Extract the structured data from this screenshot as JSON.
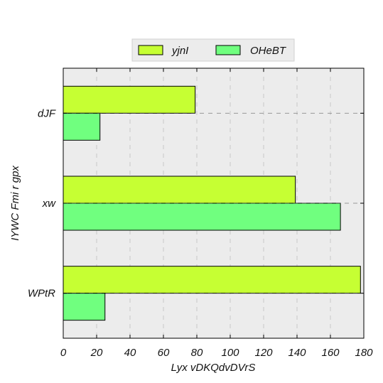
{
  "chart_data": {
    "type": "bar",
    "orientation": "horizontal",
    "title": "",
    "xlabel": "Lyx vDKQdvDVrS",
    "ylabel": "IYWC Fmi r gpx",
    "categories": [
      "dJF",
      "xw",
      "WPtR"
    ],
    "series": [
      {
        "name": "yjnI",
        "values": [
          79,
          139,
          178
        ]
      },
      {
        "name": "OHeBT",
        "values": [
          22,
          166,
          25
        ]
      }
    ],
    "xlim": [
      0,
      180
    ],
    "xticks": [
      0,
      20,
      40,
      60,
      80,
      100,
      120,
      140,
      160,
      180
    ],
    "grid": true,
    "legend_position": "top-center"
  },
  "colors": {
    "yjnI": "#c6ff33",
    "OHeBT": "#70ff7f",
    "plot_background": "#ececec",
    "grid": "#c8c8c8"
  }
}
